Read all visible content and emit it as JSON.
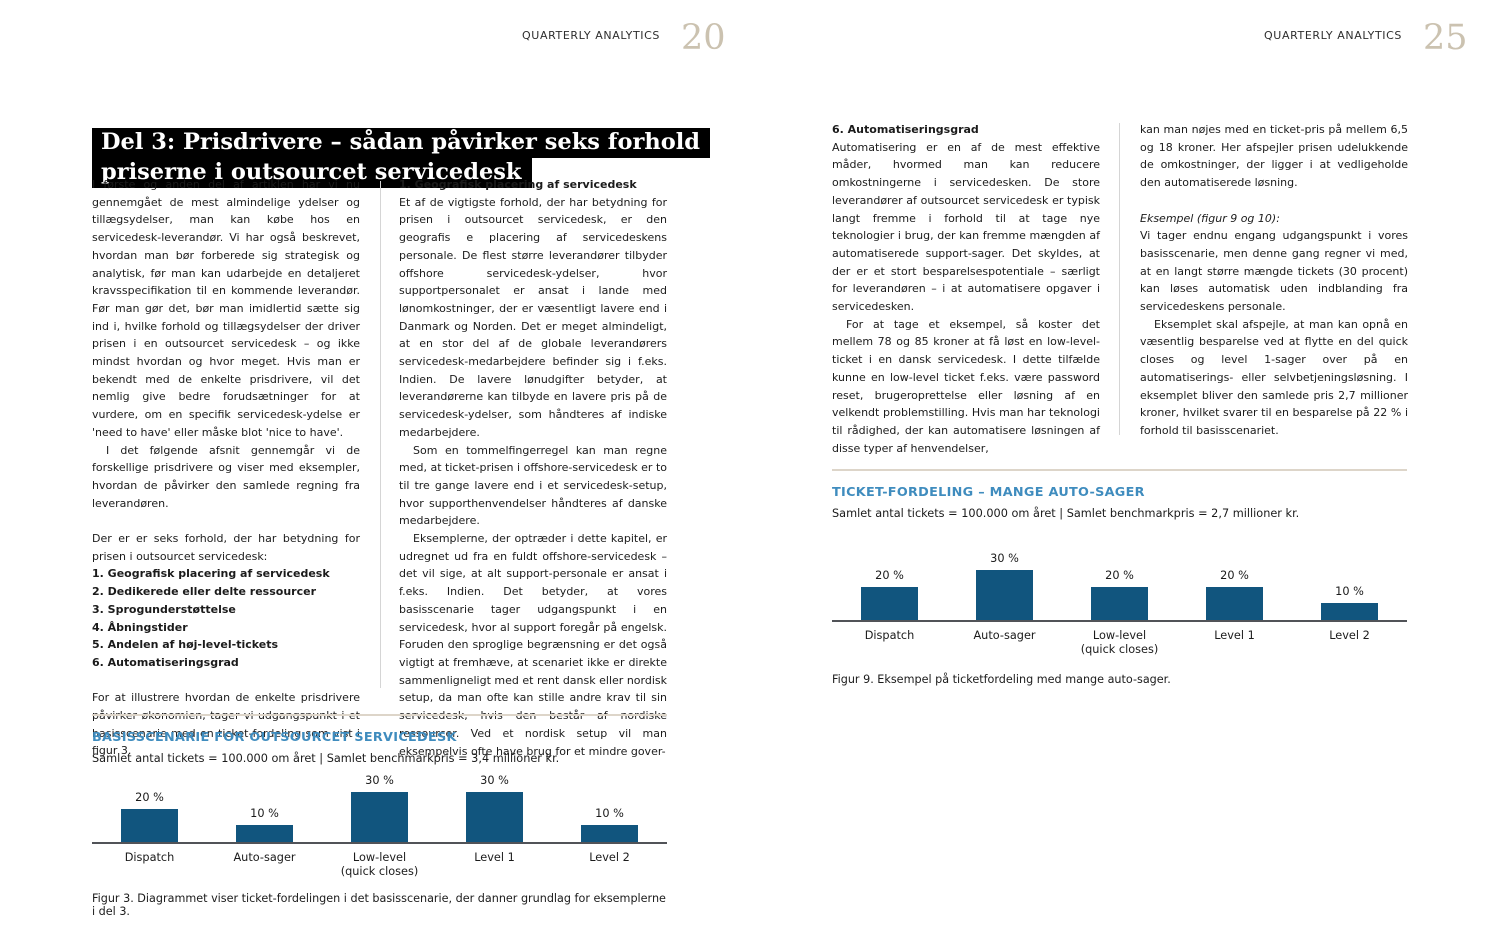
{
  "page_left": {
    "running_head": "QUARTERLY ANALYTICS",
    "page_number": "20",
    "title_line1": "Del 3: Prisdrivere – sådan påvirker seks forhold",
    "title_line2": "priserne i outsourcet servicedesk",
    "col1": {
      "p1": "I første og anden del af artiklen har vi nu gennemgået de mest almindelige ydelser og tillægsydelser, man kan købe hos en servicedesk-leverandør. Vi har også beskrevet, hvordan man bør forberede sig strategisk og analytisk, før man kan udarbejde en detaljeret kravsspecifikation til en kommende leverandør. Før man gør det, bør man imidlertid sætte sig ind i, hvilke forhold og tillægsydelser der driver prisen i en outsourcet servicedesk – og ikke mindst hvordan og hvor meget. Hvis man er bekendt med de enkelte prisdrivere, vil det nemlig give bedre forudsætninger for at vurdere, om en specifik servicedesk-ydelse er 'need to have' eller måske blot 'nice to have'.",
      "p2": "I det følgende afsnit gennemgår vi de forskellige prisdrivere og viser med eksempler, hvordan de påvirker den samlede regning fra leverandøren.",
      "p3_intro": "Der er er seks forhold, der har betydning for prisen i outsourcet servicedesk:",
      "list": [
        "1. Geografisk placering af servicedesk",
        "2. Dedikerede eller delte ressourcer",
        "3. Sprogunderstøttelse",
        "4. Åbningstider",
        "5. Andelen af høj-level-tickets",
        "6. Automatiseringsgrad"
      ],
      "p4": "For at illustrere hvordan de enkelte prisdrivere påvirker økonomien, tager vi udgangspunkt i et basisscenarie med en ticket-fordeling som vist i figur 3."
    },
    "col2": {
      "heading": "1. Geografisk placering af servicedesk",
      "p1": "Et af de vigtigste forhold, der har betydning for prisen i outsourcet servicedesk, er den geografis e placering af servicedeskens personale. De flest større leverandører tilbyder offshore servicedesk-ydelser, hvor supportpersonalet er ansat i lande med lønomkostninger, der er væsentligt lavere end i Danmark og Norden. Det er meget almindeligt, at en stor del af de globale leverandørers servicedesk-medarbejdere befinder sig i f.eks. Indien. De lavere lønudgifter betyder, at leverandørerne kan tilbyde en lavere pris på de servicedesk-ydelser, som håndteres af indiske medarbejdere.",
      "p2": "Som en tommelfingerregel kan man regne med, at ticket-prisen i offshore-servicedesk er to til tre gange lavere end i et servicedesk-setup, hvor supporthenvendelser håndteres af danske medarbejdere.",
      "p3": "Eksemplerne, der optræder i dette kapitel, er udregnet ud fra en fuldt offshore-servicedesk – det vil sige, at alt support-personale er ansat i f.eks. Indien. Det betyder, at vores basisscenarie tager udgangspunkt i en servicedesk, hvor al support foregår på engelsk. Foruden den sproglige begrænsning er det også vigtigt at fremhæve, at scenariet ikke er direkte sammenligneligt med et rent dansk eller nordisk setup, da man ofte kan stille andre krav til sin servicedesk, hvis den består af nordiske ressourcer. Ved et nordisk setup vil man eksempelvis ofte have brug for et mindre gover-"
    }
  },
  "page_right": {
    "running_head": "QUARTERLY ANALYTICS",
    "page_number": "25",
    "col1": {
      "heading": "6. Automatiseringsgrad",
      "p1": "Automatisering er en af de mest effektive måder, hvormed man kan reducere omkostningerne i servicedesken. De store leverandører af outsourcet servicedesk er typisk langt fremme i forhold til at tage nye teknologier i brug, der kan fremme mængden af automatiserede support-sager. Det skyldes, at der er et stort besparelsespotentiale – særligt for leverandøren – i at automatisere opgaver i servicedesken.",
      "p2": "For at tage et eksempel, så koster det mellem 78 og 85 kroner at få løst en low-level-ticket i en dansk servicedesk. I dette tilfælde kunne en low-level ticket f.eks. være password reset, brugeroprettelse eller løsning af en velkendt problemstilling. Hvis man har teknologi til rådighed, der kan automatisere løsningen af disse typer af henvendelser,"
    },
    "col2": {
      "p1": "kan man nøjes med en ticket-pris på mellem 6,5 og 18 kroner. Her afspejler prisen udelukkende de omkostninger, der ligger i at vedligeholde den automatiserede løsning.",
      "example_heading": "Eksempel (figur 9 og 10):",
      "p2": "Vi tager endnu engang udgangspunkt i vores basisscenarie, men denne gang regner vi med, at en langt større mængde tickets (30 procent) kan løses automatisk uden indblanding fra servicedeskens personale.",
      "p3": "Eksemplet skal afspejle, at man kan opnå en væsentlig besparelse ved at flytte en del quick closes og level 1-sager over på en automatiserings- eller selvbetjeningsløsning. I eksemplet bliver den samlede pris 2,7 millioner kroner, hvilket svarer til en besparelse på 22 % i forhold til basisscenariet."
    }
  },
  "chart_data": [
    {
      "type": "bar",
      "title": "BASISSCENARIE FOR OUTSOURCET SERVICEDESK",
      "subtitle": "Samlet antal tickets = 100.000 om året | Samlet benchmarkpris = 3,4 millioner kr.",
      "categories": [
        "Dispatch",
        "Auto-sager",
        "Low-level\n(quick closes)",
        "Level 1",
        "Level 2"
      ],
      "values": [
        20,
        10,
        30,
        30,
        10
      ],
      "value_labels": [
        "20 %",
        "10 %",
        "30 %",
        "30 %",
        "10 %"
      ],
      "xlabel": "",
      "ylabel": "",
      "ylim": [
        0,
        35
      ],
      "grid": false,
      "legend": "none",
      "bar_color": "#11557e",
      "caption": "Figur 3. Diagrammet viser ticket-fordelingen i det basisscenarie, der danner grundlag for eksemplerne i del 3."
    },
    {
      "type": "bar",
      "title": "TICKET-FORDELING – MANGE AUTO-SAGER",
      "subtitle": "Samlet antal tickets = 100.000 om året | Samlet benchmarkpris = 2,7 millioner kr.",
      "categories": [
        "Dispatch",
        "Auto-sager",
        "Low-level\n(quick closes)",
        "Level 1",
        "Level 2"
      ],
      "values": [
        20,
        30,
        20,
        20,
        10
      ],
      "value_labels": [
        "20 %",
        "30 %",
        "20 %",
        "20 %",
        "10 %"
      ],
      "xlabel": "",
      "ylabel": "",
      "ylim": [
        0,
        35
      ],
      "grid": false,
      "legend": "none",
      "bar_color": "#11557e",
      "caption": "Figur 9. Eksempel på ticketfordeling med mange auto-sager."
    }
  ],
  "colors": {
    "bar_blue": "#11557e",
    "figure_title_blue": "#3f8cbe",
    "page_number_beige": "#cbc2b0",
    "title_highlight_bg": "#000000",
    "title_highlight_fg": "#ffffff",
    "axis_gray": "#515358",
    "rule_tan": "#ddd5c9"
  }
}
